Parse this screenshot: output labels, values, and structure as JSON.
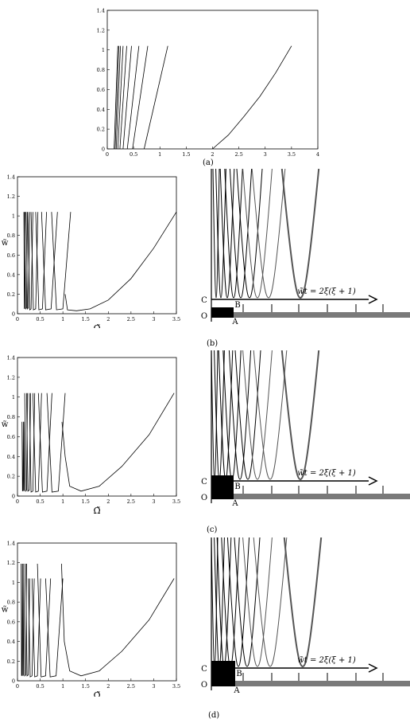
{
  "panels": [
    {
      "id": "a",
      "caption": "(a)"
    },
    {
      "id": "b",
      "caption": "(b)"
    },
    {
      "id": "c",
      "caption": "(c)"
    },
    {
      "id": "d",
      "caption": "(d)"
    }
  ],
  "labels": {
    "ylabel": "w̃",
    "xlabel": "Ω̃",
    "point_C": "C",
    "point_B": "B",
    "point_O": "O",
    "point_A": "A",
    "equation_b": "w̃t = 2ξ(ξ + 1)",
    "equation_c": "w̃t = 2ξ(ξ + 1)",
    "equation_d": "w̃t = 2ξ(ξ + 1)"
  },
  "colors": {
    "curve": "#000000",
    "curve_gray": "#555555",
    "axis": "#000000"
  },
  "chart_data": [
    {
      "type": "line",
      "panel": "a",
      "xlim": [
        0,
        4
      ],
      "ylim": [
        0,
        1.4
      ],
      "xticks": [
        "0",
        "0.5",
        "1",
        "1.5",
        "2",
        "2.5",
        "3",
        "3.5",
        "4"
      ],
      "yticks": [
        "0",
        "0.2",
        "0.4",
        "0.6",
        "0.8",
        "1",
        "1.2",
        "1.4"
      ],
      "series": [
        {
          "x": [
            0.13,
            0.2
          ],
          "y": [
            0,
            1.04
          ]
        },
        {
          "x": [
            0.15,
            0.22
          ],
          "y": [
            0,
            1.04
          ]
        },
        {
          "x": [
            0.17,
            0.25
          ],
          "y": [
            0,
            1.04
          ]
        },
        {
          "x": [
            0.2,
            0.3
          ],
          "y": [
            0,
            1.04
          ]
        },
        {
          "x": [
            0.24,
            0.37
          ],
          "y": [
            0,
            1.04
          ]
        },
        {
          "x": [
            0.3,
            0.46
          ],
          "y": [
            0,
            1.04
          ]
        },
        {
          "x": [
            0.38,
            0.6
          ],
          "y": [
            0,
            1.04
          ]
        },
        {
          "x": [
            0.48,
            0.77
          ],
          "y": [
            0,
            1.04
          ]
        },
        {
          "x": [
            0.7,
            1.15
          ],
          "y": [
            0,
            1.04
          ]
        },
        {
          "x": [
            2.0,
            2.3,
            2.6,
            2.9,
            3.2,
            3.5
          ],
          "y": [
            0,
            0.14,
            0.33,
            0.53,
            0.77,
            1.04
          ]
        }
      ]
    },
    {
      "type": "line",
      "panel": "b",
      "xlim": [
        0,
        3.5
      ],
      "ylim": [
        0,
        1.4
      ],
      "xticks": [
        "0",
        "0.5",
        "1",
        "1.5",
        "2",
        "2.5",
        "3",
        "3.5"
      ],
      "yticks": [
        "0",
        "0.2",
        "0.4",
        "0.6",
        "0.8",
        "1",
        "1.2",
        "1.4"
      ],
      "series": [
        {
          "x": [
            0.14,
            0.15,
            0.16,
            0.17
          ],
          "y": [
            1.04,
            0.05,
            0.06,
            1.04
          ]
        },
        {
          "x": [
            0.16,
            0.18,
            0.2,
            0.22
          ],
          "y": [
            1.04,
            0.05,
            0.06,
            1.04
          ]
        },
        {
          "x": [
            0.19,
            0.22,
            0.24,
            0.27
          ],
          "y": [
            1.04,
            0.05,
            0.06,
            1.04
          ]
        },
        {
          "x": [
            0.23,
            0.27,
            0.3,
            0.34
          ],
          "y": [
            1.04,
            0.04,
            0.05,
            1.04
          ]
        },
        {
          "x": [
            0.3,
            0.35,
            0.4,
            0.45
          ],
          "y": [
            1.04,
            0.04,
            0.05,
            1.04
          ]
        },
        {
          "x": [
            0.4,
            0.47,
            0.55,
            0.64
          ],
          "y": [
            1.04,
            0.04,
            0.05,
            1.04
          ]
        },
        {
          "x": [
            0.53,
            0.62,
            0.74,
            0.88
          ],
          "y": [
            1.04,
            0.04,
            0.05,
            1.04
          ]
        },
        {
          "x": [
            0.75,
            0.86,
            1.0,
            1.17
          ],
          "y": [
            1.04,
            0.04,
            0.05,
            1.04
          ]
        },
        {
          "x": [
            1.05,
            1.1,
            1.3,
            1.6,
            2.0,
            2.5,
            3.0,
            3.5
          ],
          "y": [
            0.2,
            0.04,
            0.03,
            0.05,
            0.14,
            0.36,
            0.67,
            1.04
          ]
        }
      ]
    },
    {
      "type": "line",
      "panel": "c",
      "xlim": [
        0,
        3.5
      ],
      "ylim": [
        0,
        1.4
      ],
      "xticks": [
        "0",
        "0.5",
        "1",
        "1.5",
        "2",
        "2.5",
        "3",
        "3.5"
      ],
      "yticks": [
        "0",
        "0.2",
        "0.4",
        "0.6",
        "0.8",
        "1",
        "1.2",
        "1.4"
      ],
      "series": [
        {
          "x": [
            0.1,
            0.11,
            0.12,
            0.13
          ],
          "y": [
            0.75,
            0.05,
            0.06,
            0.75
          ]
        },
        {
          "x": [
            0.13,
            0.14,
            0.15,
            0.16
          ],
          "y": [
            0.75,
            0.05,
            0.06,
            0.75
          ]
        },
        {
          "x": [
            0.16,
            0.18,
            0.2,
            0.22
          ],
          "y": [
            1.04,
            0.05,
            0.06,
            1.04
          ]
        },
        {
          "x": [
            0.2,
            0.23,
            0.26,
            0.29
          ],
          "y": [
            1.04,
            0.05,
            0.06,
            1.04
          ]
        },
        {
          "x": [
            0.26,
            0.3,
            0.34,
            0.38
          ],
          "y": [
            1.04,
            0.04,
            0.05,
            1.04
          ]
        },
        {
          "x": [
            0.34,
            0.4,
            0.46,
            0.53
          ],
          "y": [
            1.04,
            0.04,
            0.05,
            1.04
          ]
        },
        {
          "x": [
            0.46,
            0.55,
            0.65,
            0.76
          ],
          "y": [
            1.04,
            0.04,
            0.05,
            1.04
          ]
        },
        {
          "x": [
            0.65,
            0.76,
            0.9,
            1.05
          ],
          "y": [
            1.04,
            0.04,
            0.05,
            1.04
          ]
        },
        {
          "x": [
            0.98,
            1.05,
            1.15,
            1.4,
            1.8,
            2.3,
            2.9,
            3.45
          ],
          "y": [
            0.75,
            0.4,
            0.1,
            0.05,
            0.1,
            0.3,
            0.62,
            1.04
          ]
        }
      ]
    },
    {
      "type": "line",
      "panel": "d",
      "xlim": [
        0,
        3.5
      ],
      "ylim": [
        0,
        1.4
      ],
      "xticks": [
        "0",
        "0.5",
        "1",
        "1.5",
        "2",
        "2.5",
        "3",
        "3.5"
      ],
      "yticks": [
        "0",
        "0.2",
        "0.4",
        "0.6",
        "0.8",
        "1",
        "1.2",
        "1.4"
      ],
      "series": [
        {
          "x": [
            0.08,
            0.09,
            0.1,
            0.11
          ],
          "y": [
            1.19,
            0.05,
            0.06,
            1.19
          ]
        },
        {
          "x": [
            0.11,
            0.12,
            0.13,
            0.14
          ],
          "y": [
            1.19,
            0.05,
            0.06,
            1.19
          ]
        },
        {
          "x": [
            0.14,
            0.16,
            0.18,
            0.2
          ],
          "y": [
            1.19,
            0.05,
            0.06,
            1.19
          ]
        },
        {
          "x": [
            0.18,
            0.21,
            0.24,
            0.27
          ],
          "y": [
            1.19,
            0.05,
            0.06,
            1.04
          ]
        },
        {
          "x": [
            0.24,
            0.28,
            0.32,
            0.37
          ],
          "y": [
            1.04,
            0.04,
            0.05,
            1.04
          ]
        },
        {
          "x": [
            0.32,
            0.38,
            0.44,
            0.51
          ],
          "y": [
            1.04,
            0.04,
            0.05,
            1.04
          ]
        },
        {
          "x": [
            0.44,
            0.52,
            0.62,
            0.73
          ],
          "y": [
            1.19,
            0.04,
            0.05,
            1.04
          ]
        },
        {
          "x": [
            0.62,
            0.72,
            0.85,
            1.0
          ],
          "y": [
            1.04,
            0.04,
            0.05,
            1.04
          ]
        },
        {
          "x": [
            0.97,
            1.03,
            1.15,
            1.4,
            1.8,
            2.3,
            2.9,
            3.45
          ],
          "y": [
            1.19,
            0.4,
            0.1,
            0.05,
            0.1,
            0.3,
            0.62,
            1.04
          ]
        }
      ]
    }
  ],
  "zoom_panels": [
    {
      "panel": "b",
      "block_w": 28,
      "block_h": 13,
      "curve_x": [
        6,
        12,
        20,
        28,
        37,
        48,
        58,
        72,
        112
      ]
    },
    {
      "panel": "c",
      "block_w": 28,
      "block_h": 30,
      "curve_x": [
        4,
        10,
        18,
        26,
        36,
        46,
        58,
        74,
        112
      ]
    },
    {
      "panel": "d",
      "block_w": 30,
      "block_h": 32,
      "curve_x": [
        4,
        10,
        16,
        24,
        34,
        45,
        58,
        74,
        115
      ]
    }
  ]
}
